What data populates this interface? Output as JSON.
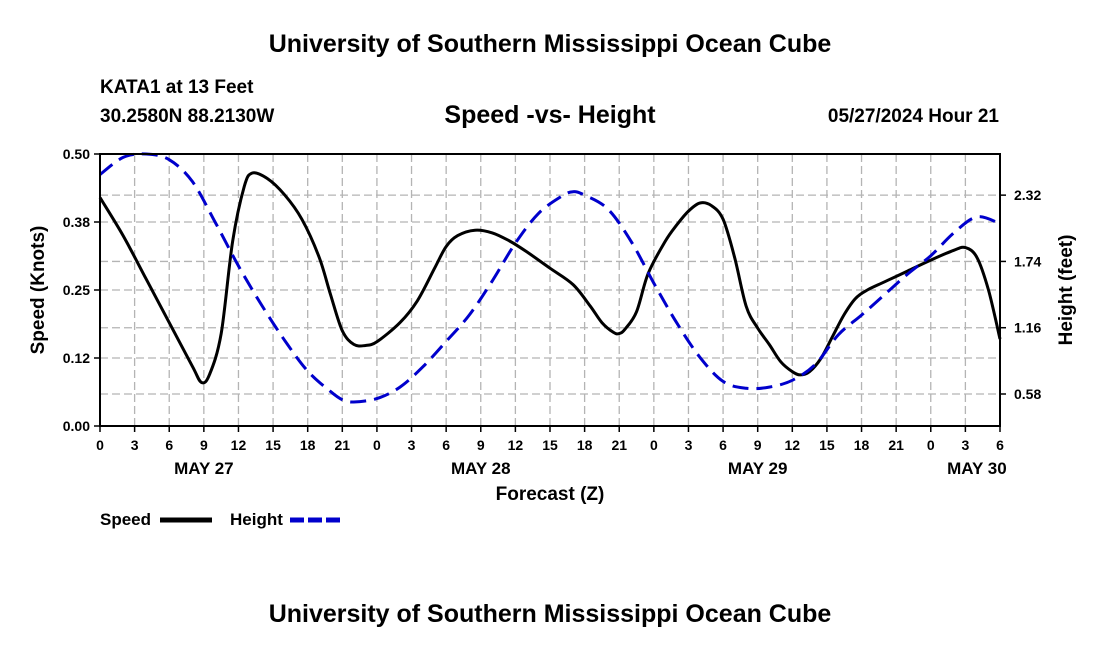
{
  "header": {
    "title": "University of Southern Mississippi Ocean Cube",
    "station": "KATA1 at 13 Feet",
    "coords": "30.2580N  88.2130W",
    "subtitle": "Speed -vs- Height",
    "datetime": "05/27/2024 Hour 21"
  },
  "footer": {
    "title": "University of Southern Mississippi Ocean Cube"
  },
  "chart_data": {
    "type": "line",
    "title": "Speed -vs- Height",
    "xlabel": "Forecast (Z)",
    "ylabel_left": "Speed (Knots)",
    "ylabel_right": "Height (feet)",
    "x_units": "hours from 00Z May 27",
    "xlim": [
      0,
      78
    ],
    "ylim_left": [
      0,
      0.5
    ],
    "ylim_right": [
      0.3,
      2.68
    ],
    "left_ticks": [
      {
        "v": 0,
        "label": "0.00"
      },
      {
        "v": 0.125,
        "label": "0.12"
      },
      {
        "v": 0.25,
        "label": "0.25"
      },
      {
        "v": 0.375,
        "label": "0.38"
      },
      {
        "v": 0.5,
        "label": "0.50"
      }
    ],
    "right_ticks": [
      {
        "v": 0.58,
        "label": "0.58"
      },
      {
        "v": 1.16,
        "label": "1.16"
      },
      {
        "v": 1.74,
        "label": "1.74"
      },
      {
        "v": 2.32,
        "label": "2.32"
      }
    ],
    "x_ticks": [
      {
        "h": 0,
        "label": "0"
      },
      {
        "h": 3,
        "label": "3"
      },
      {
        "h": 6,
        "label": "6"
      },
      {
        "h": 9,
        "label": "9"
      },
      {
        "h": 12,
        "label": "12"
      },
      {
        "h": 15,
        "label": "15"
      },
      {
        "h": 18,
        "label": "18"
      },
      {
        "h": 21,
        "label": "21"
      },
      {
        "h": 24,
        "label": "0"
      },
      {
        "h": 27,
        "label": "3"
      },
      {
        "h": 30,
        "label": "6"
      },
      {
        "h": 33,
        "label": "9"
      },
      {
        "h": 36,
        "label": "12"
      },
      {
        "h": 39,
        "label": "15"
      },
      {
        "h": 42,
        "label": "18"
      },
      {
        "h": 45,
        "label": "21"
      },
      {
        "h": 48,
        "label": "0"
      },
      {
        "h": 51,
        "label": "3"
      },
      {
        "h": 54,
        "label": "6"
      },
      {
        "h": 57,
        "label": "9"
      },
      {
        "h": 60,
        "label": "12"
      },
      {
        "h": 63,
        "label": "15"
      },
      {
        "h": 66,
        "label": "18"
      },
      {
        "h": 69,
        "label": "21"
      },
      {
        "h": 72,
        "label": "0"
      },
      {
        "h": 75,
        "label": "3"
      },
      {
        "h": 78,
        "label": "6"
      }
    ],
    "date_labels": [
      {
        "h": 9,
        "label": "MAY 27"
      },
      {
        "h": 33,
        "label": "MAY 28"
      },
      {
        "h": 57,
        "label": "MAY 29"
      },
      {
        "h": 76,
        "label": "MAY 30"
      }
    ],
    "series": [
      {
        "name": "Speed",
        "axis": "left",
        "color": "#000000",
        "dash": "solid",
        "points": [
          [
            0,
            0.42
          ],
          [
            2,
            0.35
          ],
          [
            4,
            0.27
          ],
          [
            6,
            0.19
          ],
          [
            8,
            0.11
          ],
          [
            8.8,
            0.08
          ],
          [
            9.5,
            0.095
          ],
          [
            10.5,
            0.17
          ],
          [
            11.5,
            0.34
          ],
          [
            12.5,
            0.44
          ],
          [
            13.2,
            0.465
          ],
          [
            14.5,
            0.455
          ],
          [
            16,
            0.425
          ],
          [
            17.5,
            0.38
          ],
          [
            19,
            0.31
          ],
          [
            20,
            0.24
          ],
          [
            21,
            0.175
          ],
          [
            22,
            0.15
          ],
          [
            23,
            0.148
          ],
          [
            24,
            0.155
          ],
          [
            26,
            0.19
          ],
          [
            27.5,
            0.23
          ],
          [
            29,
            0.29
          ],
          [
            30,
            0.33
          ],
          [
            31,
            0.35
          ],
          [
            32.5,
            0.36
          ],
          [
            34,
            0.355
          ],
          [
            35.5,
            0.34
          ],
          [
            37,
            0.32
          ],
          [
            39,
            0.29
          ],
          [
            41,
            0.26
          ],
          [
            42.5,
            0.22
          ],
          [
            43.5,
            0.19
          ],
          [
            44.5,
            0.172
          ],
          [
            45,
            0.17
          ],
          [
            45.5,
            0.178
          ],
          [
            46.5,
            0.21
          ],
          [
            47.5,
            0.28
          ],
          [
            49,
            0.34
          ],
          [
            50,
            0.37
          ],
          [
            51,
            0.395
          ],
          [
            52,
            0.41
          ],
          [
            53,
            0.405
          ],
          [
            54,
            0.38
          ],
          [
            55,
            0.31
          ],
          [
            56,
            0.22
          ],
          [
            57,
            0.18
          ],
          [
            58,
            0.15
          ],
          [
            59,
            0.118
          ],
          [
            60,
            0.1
          ],
          [
            60.7,
            0.094
          ],
          [
            61.5,
            0.1
          ],
          [
            62.5,
            0.125
          ],
          [
            63.5,
            0.165
          ],
          [
            64.5,
            0.205
          ],
          [
            65.5,
            0.235
          ],
          [
            66.5,
            0.25
          ],
          [
            68,
            0.265
          ],
          [
            70,
            0.285
          ],
          [
            72,
            0.305
          ],
          [
            74,
            0.323
          ],
          [
            75,
            0.328
          ],
          [
            76,
            0.31
          ],
          [
            77,
            0.25
          ],
          [
            78,
            0.16
          ]
        ]
      },
      {
        "name": "Height",
        "axis": "right",
        "color": "#0000cc",
        "dash": "dashed",
        "points": [
          [
            0,
            2.5
          ],
          [
            2,
            2.65
          ],
          [
            4,
            2.68
          ],
          [
            6,
            2.63
          ],
          [
            8,
            2.44
          ],
          [
            10,
            2.08
          ],
          [
            12,
            1.7
          ],
          [
            14,
            1.36
          ],
          [
            16,
            1.05
          ],
          [
            18,
            0.78
          ],
          [
            20,
            0.6
          ],
          [
            21,
            0.53
          ],
          [
            22,
            0.51
          ],
          [
            24,
            0.54
          ],
          [
            26,
            0.64
          ],
          [
            28,
            0.82
          ],
          [
            30,
            1.04
          ],
          [
            32,
            1.27
          ],
          [
            34,
            1.57
          ],
          [
            36,
            1.9
          ],
          [
            38,
            2.16
          ],
          [
            40,
            2.31
          ],
          [
            41,
            2.35
          ],
          [
            42,
            2.32
          ],
          [
            44,
            2.2
          ],
          [
            46,
            1.92
          ],
          [
            48,
            1.55
          ],
          [
            50,
            1.2
          ],
          [
            52,
            0.9
          ],
          [
            54,
            0.69
          ],
          [
            56,
            0.63
          ],
          [
            58,
            0.64
          ],
          [
            60,
            0.7
          ],
          [
            62,
            0.84
          ],
          [
            64,
            1.1
          ],
          [
            66,
            1.27
          ],
          [
            68,
            1.45
          ],
          [
            70,
            1.63
          ],
          [
            72,
            1.79
          ],
          [
            74,
            1.99
          ],
          [
            76,
            2.13
          ],
          [
            78,
            2.07
          ]
        ]
      }
    ],
    "legend": {
      "position": "bottom-left",
      "items": [
        "Speed",
        "Height"
      ]
    }
  }
}
